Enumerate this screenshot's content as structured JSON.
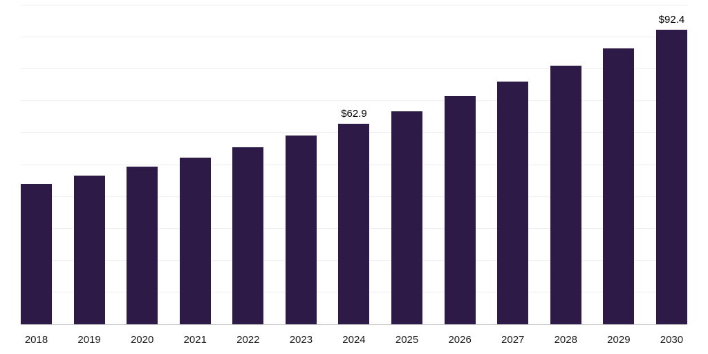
{
  "chart_data": {
    "type": "bar",
    "title": "",
    "xlabel": "",
    "ylabel": "",
    "ylim": [
      0,
      100
    ],
    "gridline_step": 10,
    "grid": true,
    "legend": false,
    "bar_color": "#2e1a47",
    "axis_line_color": "#c9c9c9",
    "categories": [
      "2018",
      "2019",
      "2020",
      "2021",
      "2022",
      "2023",
      "2024",
      "2025",
      "2026",
      "2027",
      "2028",
      "2029",
      "2030"
    ],
    "values": [
      44.0,
      46.7,
      49.5,
      52.3,
      55.6,
      59.2,
      62.9,
      66.9,
      71.5,
      76.1,
      81.2,
      86.5,
      92.4
    ],
    "data_labels": {
      "2024": "$62.9",
      "2030": "$92.4"
    }
  }
}
